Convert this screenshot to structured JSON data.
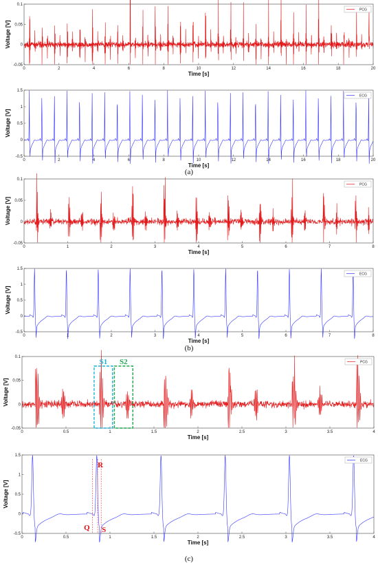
{
  "chart_data": [
    {
      "id": "a_pcg",
      "type": "line",
      "legend": "PCG",
      "color": "#e31a1c",
      "xlabel": "Time [s]",
      "ylabel": "Voltage [V]",
      "xlim": [
        0,
        20
      ],
      "ylim": [
        -0.05,
        0.1
      ],
      "xticks": [
        "0",
        "2",
        "4",
        "6",
        "8",
        "10",
        "12",
        "14",
        "16",
        "18",
        "20"
      ],
      "yticks": [
        "-0.05",
        "0",
        "0.05",
        "0.1"
      ],
      "beat_period": 0.72,
      "first_beat": 0.3
    },
    {
      "id": "a_ecg",
      "type": "line",
      "legend": "ECG",
      "color": "#3333ff",
      "xlabel": "Time [s]",
      "ylabel": "Voltage [V]",
      "xlim": [
        0,
        20
      ],
      "ylim": [
        -0.5,
        1.5
      ],
      "xticks": [
        "0",
        "2",
        "4",
        "6",
        "8",
        "10",
        "12",
        "14",
        "16",
        "18",
        "20"
      ],
      "yticks": [
        "-0.5",
        "0",
        "0.5",
        "1",
        "1.5"
      ],
      "beat_period": 0.72,
      "first_beat": 0.3
    },
    {
      "id": "b_pcg",
      "type": "line",
      "legend": "PCG",
      "color": "#e31a1c",
      "xlabel": "Time [s]",
      "ylabel": "Voltage [V]",
      "xlim": [
        0,
        8
      ],
      "ylim": [
        -0.05,
        0.1
      ],
      "xticks": [
        "0",
        "1",
        "2",
        "3",
        "4",
        "5",
        "6",
        "7",
        "8"
      ],
      "yticks": [
        "-0.05",
        "0",
        "0.05",
        "0.1"
      ],
      "beat_period": 0.73,
      "first_beat": 0.28
    },
    {
      "id": "b_ecg",
      "type": "line",
      "legend": "ECG",
      "color": "#3333ff",
      "xlabel": "Time [s]",
      "ylabel": "Voltage [V]",
      "xlim": [
        0,
        8
      ],
      "ylim": [
        -0.5,
        1.5
      ],
      "xticks": [
        "0",
        "1",
        "2",
        "3",
        "4",
        "5",
        "6",
        "7",
        "8"
      ],
      "yticks": [
        "-0.5",
        "0",
        "0.5",
        "1",
        "1.5"
      ],
      "beat_period": 0.73,
      "first_beat": 0.24
    },
    {
      "id": "c_pcg",
      "type": "line",
      "legend": "PCG",
      "color": "#e31a1c",
      "xlabel": "Time [s]",
      "ylabel": "Voltage [V]",
      "xlim": [
        0,
        4
      ],
      "ylim": [
        -0.05,
        0.1
      ],
      "xticks": [
        "0",
        "0.5",
        "1",
        "1.5",
        "2",
        "2.5",
        "3",
        "3.5",
        "4"
      ],
      "yticks": [
        "-0.05",
        "0",
        "0.05",
        "0.1"
      ],
      "beat_period": 0.73,
      "first_beat": 0.15,
      "annotations": [
        {
          "label": "S1",
          "x0": 0.82,
          "x1": 1.03,
          "y0": -0.05,
          "y1": 0.08,
          "color": "#18b4d8"
        },
        {
          "label": "S2",
          "x0": 1.05,
          "x1": 1.26,
          "y0": -0.05,
          "y1": 0.08,
          "color": "#1fa84f"
        }
      ]
    },
    {
      "id": "c_ecg",
      "type": "line",
      "legend": "ECG",
      "color": "#3333ff",
      "xlabel": "Time [s]",
      "ylabel": "Voltage [V]",
      "xlim": [
        0,
        4
      ],
      "ylim": [
        -0.5,
        1.5
      ],
      "xticks": [
        "0",
        "0.5",
        "1",
        "1.5",
        "2",
        "2.5",
        "3",
        "3.5",
        "4"
      ],
      "yticks": [
        "-0.5",
        "0",
        "0.5",
        "1",
        "1.5"
      ],
      "beat_period": 0.73,
      "first_beat": 0.12,
      "annotations": [
        {
          "label": "Q",
          "x": 0.8
        },
        {
          "label": "R",
          "x": 0.86
        },
        {
          "label": "S",
          "x": 0.9
        }
      ]
    }
  ],
  "captions": {
    "a": "(a)",
    "b": "(b)",
    "c": "(c)"
  }
}
